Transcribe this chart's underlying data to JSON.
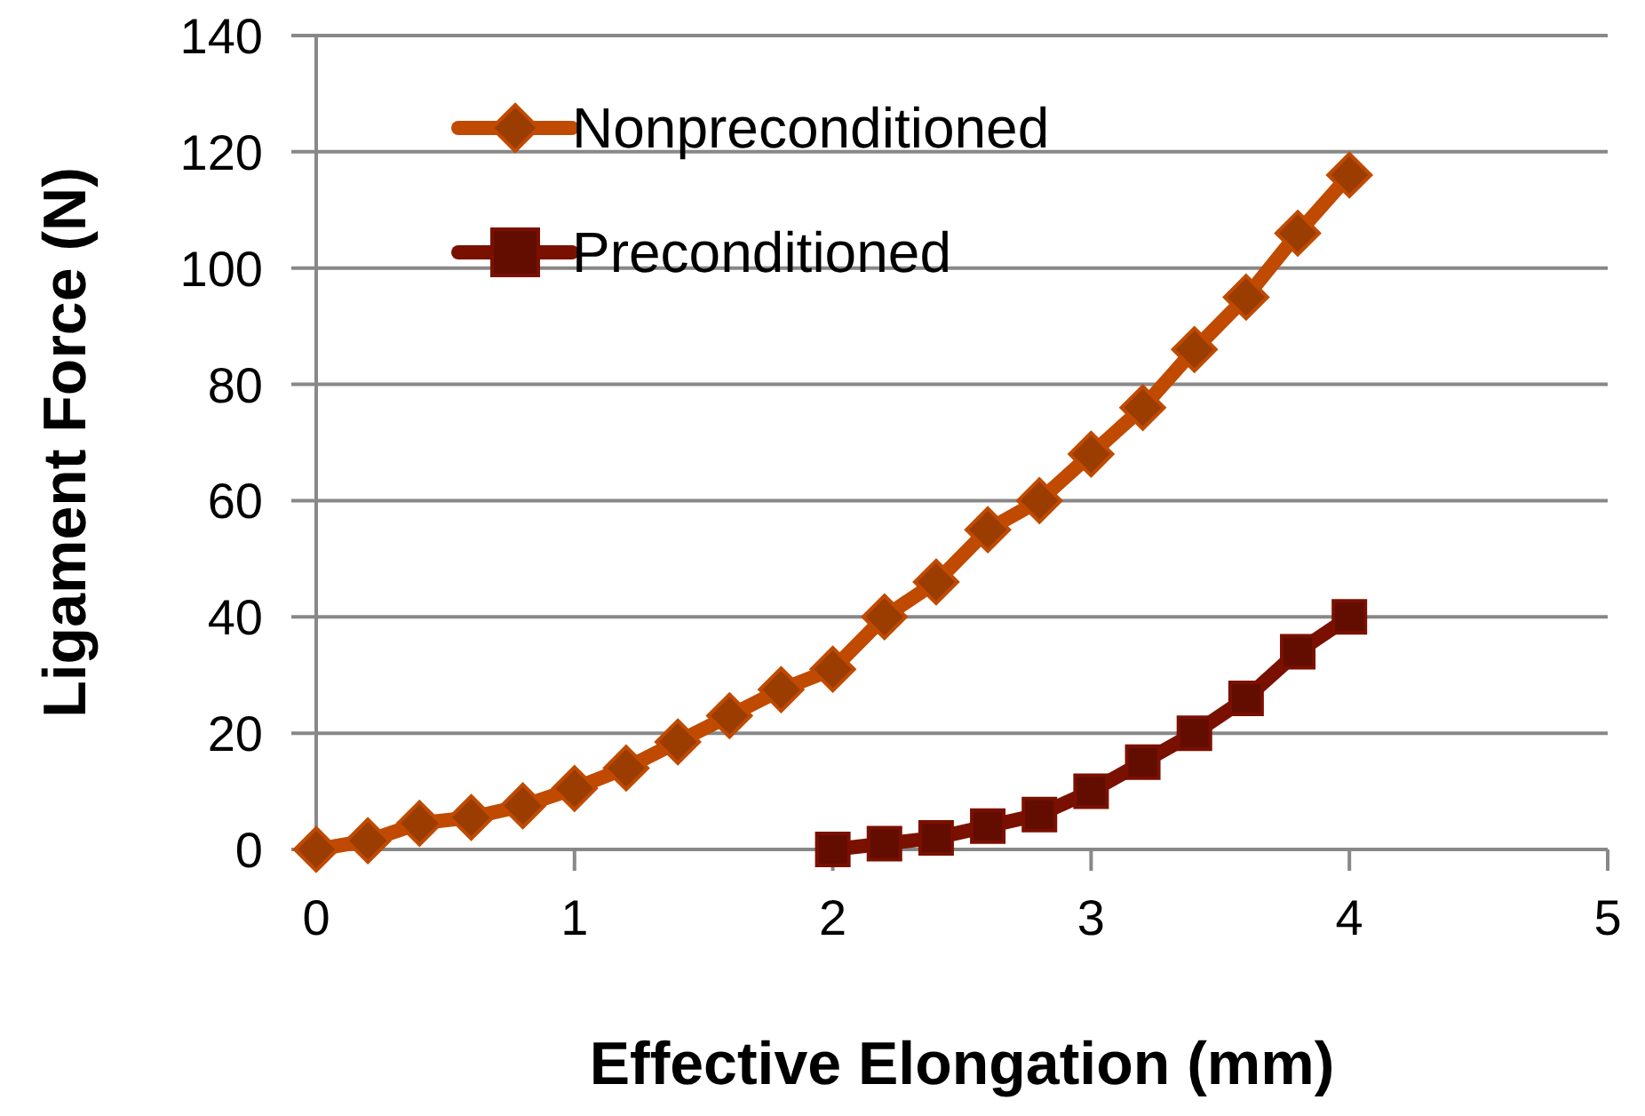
{
  "chart_data": {
    "type": "line",
    "xlabel": "Effective Elongation (mm)",
    "ylabel": "Ligament Force (N)",
    "xlim": [
      0,
      5
    ],
    "xticks": [
      0,
      1,
      2,
      3,
      4,
      5
    ],
    "ylim": [
      0,
      140
    ],
    "yticks": [
      0,
      20,
      40,
      60,
      80,
      100,
      120,
      140
    ],
    "grid": "y",
    "legend": "top left",
    "series": [
      {
        "name": "Nonpreconditioned",
        "color": "#c04a00",
        "marker": "diamond",
        "x": [
          0,
          0.2,
          0.4,
          0.6,
          0.8,
          1.0,
          1.2,
          1.4,
          1.6,
          1.8,
          2.0,
          2.2,
          2.4,
          2.6,
          2.8,
          3.0,
          3.2,
          3.4,
          3.6,
          3.8,
          4.0
        ],
        "values": [
          0,
          1.5,
          4.5,
          5.5,
          7.5,
          10.5,
          14,
          18.5,
          23,
          27.5,
          31,
          40,
          46,
          55,
          60,
          68,
          76,
          86,
          95,
          106,
          116
        ]
      },
      {
        "name": "Preconditioned",
        "color": "#7a1000",
        "marker": "square",
        "x": [
          2.0,
          2.2,
          2.4,
          2.6,
          2.8,
          3.0,
          3.2,
          3.4,
          3.6,
          3.8,
          4.0
        ],
        "values": [
          0,
          1,
          2,
          4,
          6,
          10,
          15,
          20,
          26,
          34,
          40
        ]
      }
    ]
  }
}
